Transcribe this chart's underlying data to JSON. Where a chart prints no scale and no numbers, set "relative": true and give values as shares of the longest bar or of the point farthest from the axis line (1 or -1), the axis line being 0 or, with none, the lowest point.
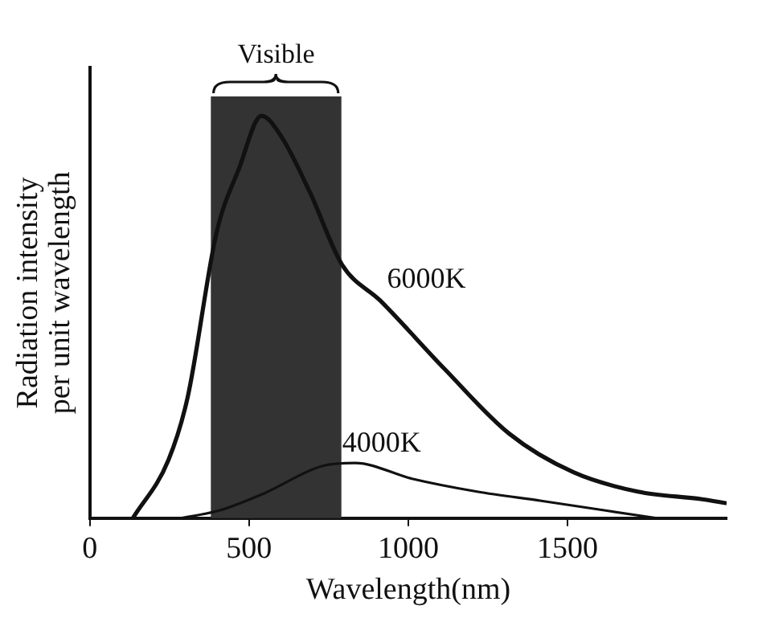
{
  "chart_data": {
    "type": "line",
    "xlabel": "Wavelength(nm)",
    "ylabel": "Radiation intensity per unit wavelength",
    "relative": true,
    "xlim": [
      0,
      2000
    ],
    "xticks": [
      0,
      500,
      1000,
      1500
    ],
    "grid": false,
    "legend": false,
    "marker": "none",
    "line_style": "solid",
    "series": [
      {
        "name": "6000K",
        "color": "#111111",
        "x": [
          135,
          247,
          307,
          398,
          469,
          539,
          600,
          691,
          792,
          913,
          1115,
          1317,
          1519,
          1721,
          1923,
          2000
        ],
        "values": [
          0,
          0.145,
          0.3,
          0.71,
          0.87,
          1,
          0.95,
          0.81,
          0.63,
          0.54,
          0.37,
          0.21,
          0.114,
          0.066,
          0.047,
          0.037
        ]
      },
      {
        "name": "4000K",
        "color": "#111111",
        "x": [
          285,
          406,
          551,
          731,
          833,
          1012,
          1216,
          1418,
          1620,
          1781
        ],
        "values": [
          0,
          0.019,
          0.063,
          0.13,
          0.137,
          0.098,
          0.066,
          0.043,
          0.019,
          0
        ]
      }
    ],
    "bands": [
      {
        "axis": "x",
        "from": 380,
        "to": 790,
        "label": "Visible",
        "color": "#333333"
      }
    ]
  }
}
